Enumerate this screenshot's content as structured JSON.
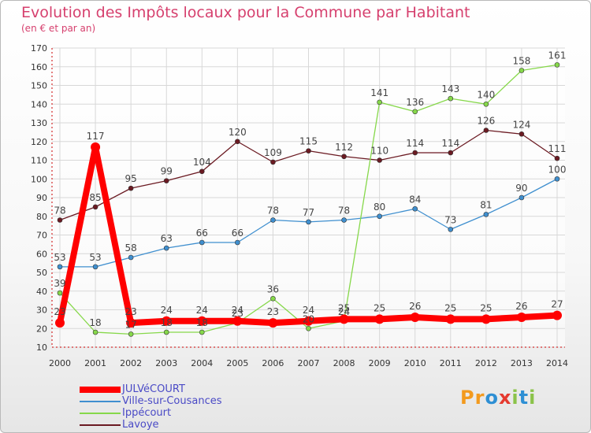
{
  "header": {
    "title": "Evolution des Impôts locaux pour la Commune par Habitant",
    "subtitle": "(en € et par an)"
  },
  "brand": {
    "letters": [
      "P",
      "r",
      "o",
      "x",
      "i",
      "t",
      "i"
    ],
    "colors": [
      "#f39a1e",
      "#f39a1e",
      "#2e8fd4",
      "#e53a2f",
      "#8bc34a",
      "#2e8fd4",
      "#8bc34a"
    ]
  },
  "chart_data": {
    "type": "line",
    "title": "Evolution des Impôts locaux pour la Commune par Habitant",
    "subtitle": "(en € et par an)",
    "xlabel": "",
    "ylabel": "",
    "categories": [
      "2000",
      "2001",
      "2002",
      "2003",
      "2004",
      "2005",
      "2006",
      "2007",
      "2008",
      "2009",
      "2010",
      "2011",
      "2012",
      "2013",
      "2014"
    ],
    "ylim": [
      10,
      170
    ],
    "yticks": [
      10,
      20,
      30,
      40,
      50,
      60,
      70,
      80,
      90,
      100,
      110,
      120,
      130,
      140,
      150,
      160,
      170
    ],
    "grid": true,
    "legend_position": "bottom-left",
    "series": [
      {
        "name": "Lavoye",
        "color": "#6b1a22",
        "values": [
          78,
          85,
          95,
          99,
          104,
          120,
          109,
          115,
          112,
          110,
          114,
          114,
          126,
          124,
          111
        ]
      },
      {
        "name": "Ville-sur-Cousances",
        "color": "#3f8fcf",
        "values": [
          53,
          53,
          58,
          63,
          66,
          66,
          78,
          77,
          78,
          80,
          84,
          73,
          81,
          90,
          100
        ]
      },
      {
        "name": "Ippécourt",
        "color": "#86d84a",
        "values": [
          39,
          18,
          17,
          18,
          18,
          23,
          36,
          20,
          24,
          141,
          136,
          143,
          140,
          158,
          161
        ]
      },
      {
        "name": "JULVéCOURT",
        "color": "#ff0000",
        "values": [
          23,
          117,
          23,
          24,
          24,
          24,
          23,
          24,
          25,
          25,
          26,
          25,
          25,
          26,
          27
        ]
      }
    ]
  }
}
